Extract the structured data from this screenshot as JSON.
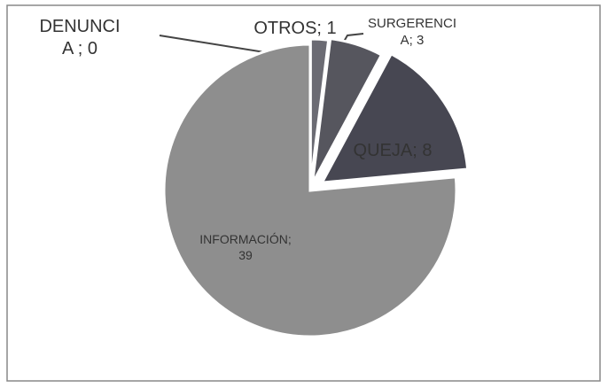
{
  "chart_data": {
    "type": "pie",
    "categories": [
      "DENUNCIA",
      "OTROS",
      "SURGERENCIA",
      "QUEJA",
      "INFORMACIÓN"
    ],
    "values": [
      0,
      1,
      3,
      8,
      39
    ],
    "value_labels": [
      "DENUNCIA ; 0",
      "OTROS; 1",
      "SURGERENCIA; 3",
      "QUEJA; 8",
      "INFORMACIÓN; 39"
    ],
    "colors": [
      "#555560",
      "#6b6b73",
      "#56565e",
      "#474752",
      "#8e8e8e"
    ]
  }
}
